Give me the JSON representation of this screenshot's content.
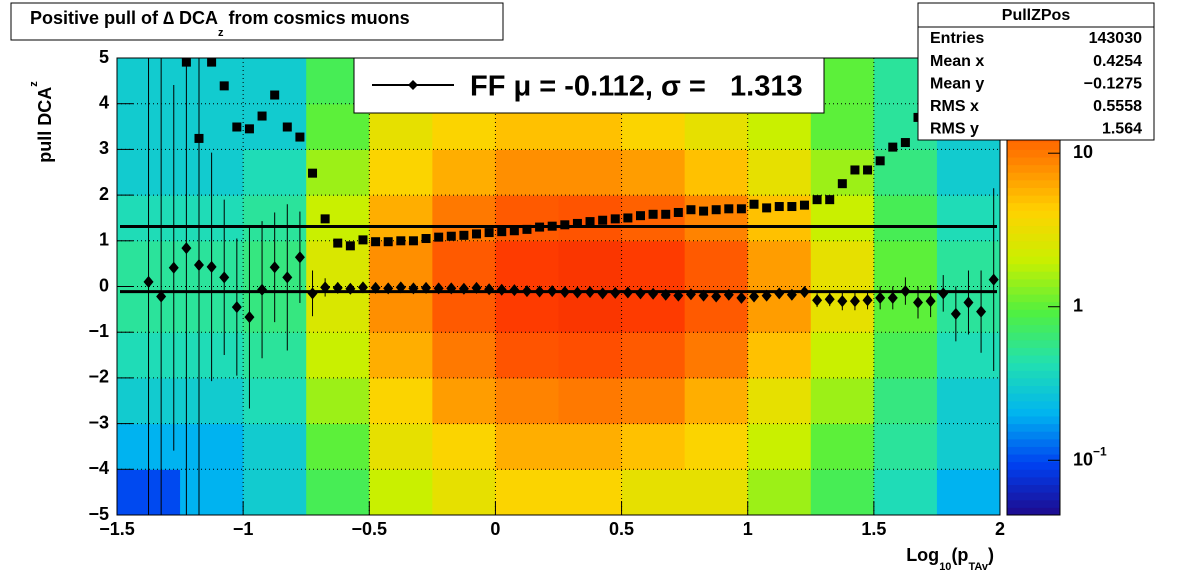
{
  "chart_data": {
    "type": "hist2d",
    "title": {
      "text": "Positive pull of ∆ DCA",
      "sub": "z",
      "rest": " from cosmics muons"
    },
    "x_label": {
      "text": "Log",
      "sub": "10",
      "mid": "(p",
      "sub2": "TAv",
      "rest": ")"
    },
    "y_label": {
      "text": "pull DCA",
      "sub": "z"
    },
    "xlim": [
      -1.5,
      2
    ],
    "ylim": [
      -5,
      5
    ],
    "xticks": [
      {
        "value": -1.5,
        "label": "−1.5"
      },
      {
        "value": -1,
        "label": "−1"
      },
      {
        "value": -0.5,
        "label": "−0.5"
      },
      0,
      0.5,
      1,
      1.5,
      2
    ],
    "yticks": [
      {
        "value": -5,
        "label": "−5"
      },
      {
        "value": -4,
        "label": "−4"
      },
      {
        "value": -3,
        "label": "−3"
      },
      {
        "value": -2,
        "label": "−2"
      },
      {
        "value": -1,
        "label": "−1"
      },
      0,
      1,
      2,
      3,
      4,
      5
    ],
    "grid": true,
    "zlim": [
      0.044,
      41.7
    ],
    "zlog": true,
    "zticks": [
      {
        "value": 0.1,
        "label": "10",
        "exponent": "−1"
      },
      1,
      10
    ],
    "palette": [
      "#1e0a8c",
      "#0040f0",
      "#00b4f0",
      "#22e0b0",
      "#50f040",
      "#c8f000",
      "#ffd200",
      "#ff8200",
      "#ff3c00",
      "#e01400"
    ],
    "hist2d": {
      "xbins": [
        -1.5,
        -1.25,
        -1,
        -0.75,
        -0.5,
        -0.25,
        0,
        0.25,
        0.5,
        0.75,
        1,
        1.25,
        1.5,
        1.75,
        2
      ],
      "ybins": [
        -5,
        -4,
        -3,
        -2,
        -1,
        0,
        1,
        2,
        3,
        4,
        5
      ],
      "counts": [
        [
          0.1,
          0.2,
          0.3,
          0.8,
          2,
          3,
          4,
          4,
          3,
          3,
          1.5,
          0.8,
          0.4,
          0.2
        ],
        [
          0.2,
          0.2,
          0.3,
          1,
          3,
          4,
          6,
          6,
          5,
          4,
          2,
          1,
          0.5,
          0.3
        ],
        [
          0.3,
          0.3,
          0.4,
          1.5,
          4,
          7,
          9,
          10,
          9,
          6,
          3,
          1.5,
          0.6,
          0.3
        ],
        [
          0.4,
          0.4,
          0.5,
          2,
          6,
          10,
          15,
          16,
          14,
          10,
          5,
          2,
          0.8,
          0.4
        ],
        [
          0.5,
          0.5,
          0.6,
          2.5,
          8,
          14,
          20,
          22,
          20,
          14,
          7,
          3,
          1,
          0.5
        ],
        [
          0.5,
          0.5,
          0.6,
          2.5,
          8,
          14,
          20,
          22,
          20,
          14,
          7,
          3,
          1,
          0.5
        ],
        [
          0.4,
          0.4,
          0.5,
          2,
          6,
          10,
          14,
          15,
          13,
          9,
          5,
          2,
          0.8,
          0.4
        ],
        [
          0.3,
          0.3,
          0.4,
          1.5,
          4,
          6,
          8,
          8,
          7,
          5,
          3,
          1.5,
          0.6,
          0.3
        ],
        [
          0.3,
          0.3,
          0.3,
          1,
          3,
          4,
          5,
          5,
          4,
          3,
          2,
          1,
          0.5,
          0.3
        ],
        [
          0.3,
          0.3,
          0.3,
          0.8,
          2,
          3,
          3,
          3,
          3,
          2,
          1.5,
          1,
          0.5,
          0.3
        ]
      ]
    },
    "series": [
      {
        "marker": "diamond",
        "color": "#000000",
        "x": [
          -1.375,
          -1.325,
          -1.275,
          -1.225,
          -1.175,
          -1.125,
          -1.075,
          -1.025,
          -0.975,
          -0.925,
          -0.875,
          -0.825,
          -0.775,
          -0.725,
          -0.675,
          -0.625,
          -0.575,
          -0.525,
          -0.475,
          -0.425,
          -0.375,
          -0.325,
          -0.275,
          -0.225,
          -0.175,
          -0.125,
          -0.075,
          -0.025,
          0.025,
          0.075,
          0.125,
          0.175,
          0.225,
          0.275,
          0.325,
          0.375,
          0.425,
          0.475,
          0.525,
          0.575,
          0.625,
          0.675,
          0.725,
          0.775,
          0.825,
          0.875,
          0.925,
          0.975,
          1.025,
          1.075,
          1.125,
          1.175,
          1.225,
          1.275,
          1.325,
          1.375,
          1.425,
          1.475,
          1.525,
          1.575,
          1.625,
          1.675,
          1.725,
          1.775,
          1.825,
          1.875,
          1.925,
          1.975
        ],
        "values": [
          0.1,
          -0.22,
          0.41,
          0.84,
          0.47,
          0.43,
          0.2,
          -0.45,
          -0.67,
          -0.07,
          0.42,
          0.2,
          0.64,
          -0.15,
          -0.02,
          -0.03,
          -0.05,
          -0.02,
          -0.03,
          -0.04,
          -0.02,
          -0.04,
          -0.03,
          -0.04,
          -0.04,
          -0.05,
          -0.03,
          -0.06,
          -0.07,
          -0.08,
          -0.1,
          -0.11,
          -0.1,
          -0.12,
          -0.13,
          -0.12,
          -0.15,
          -0.14,
          -0.13,
          -0.15,
          -0.16,
          -0.18,
          -0.2,
          -0.17,
          -0.2,
          -0.22,
          -0.18,
          -0.25,
          -0.22,
          -0.2,
          -0.15,
          -0.18,
          -0.12,
          -0.3,
          -0.28,
          -0.32,
          -0.32,
          -0.3,
          -0.25,
          -0.25,
          -0.1,
          -0.35,
          -0.32,
          -0.15,
          -0.6,
          -0.35,
          -0.55,
          0.15
        ],
        "errors": [
          6,
          6,
          4,
          6,
          6,
          2.5,
          1.7,
          1.5,
          2,
          1.5,
          1.2,
          1.6,
          1,
          0.5,
          0.2,
          0.12,
          0.08,
          0.06,
          0.05,
          0.05,
          0.05,
          0.05,
          0.05,
          0.05,
          0.05,
          0.05,
          0.05,
          0.05,
          0.05,
          0.05,
          0.05,
          0.05,
          0.05,
          0.05,
          0.05,
          0.05,
          0.05,
          0.05,
          0.05,
          0.05,
          0.05,
          0.05,
          0.06,
          0.06,
          0.06,
          0.07,
          0.07,
          0.08,
          0.08,
          0.09,
          0.1,
          0.1,
          0.12,
          0.15,
          0.15,
          0.2,
          0.2,
          0.2,
          0.25,
          0.25,
          0.3,
          0.35,
          0.35,
          0.4,
          0.6,
          0.7,
          0.9,
          2
        ]
      },
      {
        "marker": "square",
        "color": "#000000",
        "x": [
          -1.225,
          -1.175,
          -1.125,
          -1.075,
          -1.025,
          -0.975,
          -0.925,
          -0.875,
          -0.825,
          -0.775,
          -0.725,
          -0.675,
          -0.625,
          -0.575,
          -0.525,
          -0.475,
          -0.425,
          -0.375,
          -0.325,
          -0.275,
          -0.225,
          -0.175,
          -0.125,
          -0.075,
          -0.025,
          0.025,
          0.075,
          0.125,
          0.175,
          0.225,
          0.275,
          0.325,
          0.375,
          0.425,
          0.475,
          0.525,
          0.575,
          0.625,
          0.675,
          0.725,
          0.775,
          0.825,
          0.875,
          0.925,
          0.975,
          1.025,
          1.075,
          1.125,
          1.175,
          1.225,
          1.275,
          1.325,
          1.375,
          1.425,
          1.475,
          1.525,
          1.575,
          1.625,
          1.675,
          1.725,
          1.775,
          1.825
        ],
        "values": [
          4.91,
          3.24,
          4.91,
          4.39,
          3.49,
          3.45,
          3.73,
          4.19,
          3.49,
          3.27,
          2.48,
          1.48,
          0.95,
          0.89,
          1.02,
          0.98,
          0.98,
          1,
          1,
          1.05,
          1.08,
          1.1,
          1.12,
          1.15,
          1.18,
          1.2,
          1.22,
          1.25,
          1.3,
          1.32,
          1.35,
          1.38,
          1.42,
          1.45,
          1.48,
          1.5,
          1.55,
          1.58,
          1.58,
          1.62,
          1.68,
          1.65,
          1.68,
          1.7,
          1.7,
          1.8,
          1.72,
          1.75,
          1.75,
          1.78,
          1.9,
          1.9,
          2.25,
          2.55,
          2.55,
          2.75,
          3.05,
          3.15,
          3.7,
          4.05,
          4.3,
          4.65
        ]
      }
    ],
    "fit_mean": -0.112,
    "fit_sigma": 1.313,
    "legend": "FF μ = -0.112, σ =   1.313",
    "stats": {
      "title": "PullZPos",
      "rows": [
        [
          "Entries",
          "143030"
        ],
        [
          "Mean x",
          "0.4254"
        ],
        [
          "Mean y",
          "−0.1275"
        ],
        [
          "RMS x",
          "0.5558"
        ],
        [
          "RMS y",
          "1.564"
        ]
      ]
    }
  }
}
